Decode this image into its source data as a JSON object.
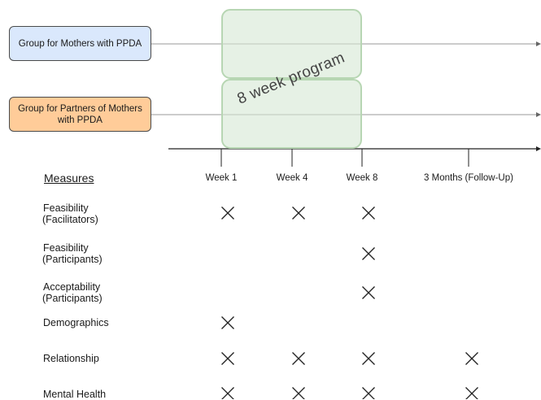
{
  "groups": {
    "mothers": {
      "label": "Group for Mothers with PPDA",
      "color": "#dae8fc"
    },
    "partners": {
      "label": "Group for Partners of Mothers with PPDA",
      "color": "#ffcc99"
    }
  },
  "program": {
    "label": "8 week program",
    "color": "#d5e8d4"
  },
  "timeline": {
    "points": [
      "Week 1",
      "Week 4",
      "Week 8",
      "3 Months (Follow-Up)"
    ]
  },
  "measures": {
    "heading": "Measures",
    "rows": [
      {
        "label": "Feasibility\n(Facilitators)",
        "marks": [
          true,
          true,
          true,
          false
        ]
      },
      {
        "label": "Feasibility\n(Participants)",
        "marks": [
          false,
          false,
          true,
          false
        ]
      },
      {
        "label": "Acceptability\n(Participants)",
        "marks": [
          false,
          false,
          true,
          false
        ]
      },
      {
        "label": "Demographics",
        "marks": [
          true,
          false,
          false,
          false
        ]
      },
      {
        "label": "Relationship",
        "marks": [
          true,
          true,
          true,
          true
        ]
      },
      {
        "label": "Mental Health",
        "marks": [
          true,
          true,
          true,
          true
        ]
      }
    ]
  },
  "icons": {
    "mark": "cross-mark-icon"
  }
}
